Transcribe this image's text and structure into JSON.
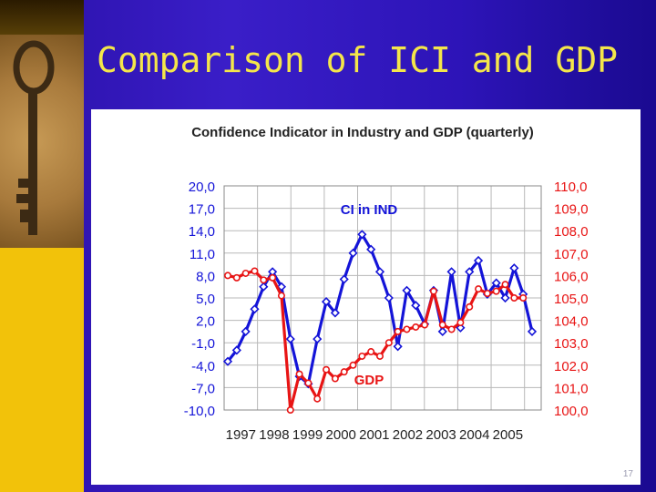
{
  "slide": {
    "title": "Comparison of ICI and GDP",
    "page_number": "17"
  },
  "colors": {
    "ici": "#1414d8",
    "gdp": "#e81414",
    "grid": "#b8b8b8",
    "title_text": "#f4e64a"
  },
  "chart_data": {
    "type": "line",
    "title": "Confidence Indicator in Industry and GDP (quarterly)",
    "x_tick_labels": [
      "1997",
      "1998",
      "1999",
      "2000",
      "2001",
      "2002",
      "2003",
      "2004",
      "2005"
    ],
    "left_axis": {
      "ylim": [
        -10,
        20
      ],
      "tick_labels": [
        "20,0",
        "17,0",
        "14,0",
        "11,0",
        "8,0",
        "5,0",
        "2,0",
        "-1,0",
        "-4,0",
        "-7,0",
        "-10,0"
      ]
    },
    "right_axis": {
      "ylim": [
        100,
        110
      ],
      "tick_labels": [
        "110,0",
        "109,0",
        "108,0",
        "107,0",
        "106,0",
        "105,0",
        "104,0",
        "103,0",
        "102,0",
        "101,0",
        "100,0"
      ]
    },
    "series": [
      {
        "name": "CI in IND",
        "axis": "left",
        "values": [
          -3.5,
          -2,
          0.5,
          3.5,
          6.5,
          8.5,
          6.5,
          -0.5,
          -5.5,
          -6.5,
          -0.5,
          4.5,
          3,
          7.5,
          11,
          13.5,
          11.5,
          8.5,
          5,
          -1.5,
          6,
          4,
          1.5,
          6,
          0.5,
          8.5,
          1,
          8.5,
          10,
          5.5,
          7,
          5,
          9,
          5.5,
          0.5
        ]
      },
      {
        "name": "GDP",
        "axis": "right",
        "values": [
          106.0,
          105.9,
          106.1,
          106.2,
          105.8,
          105.9,
          105.1,
          100.0,
          101.6,
          101.2,
          100.5,
          101.8,
          101.4,
          101.7,
          102.0,
          102.4,
          102.6,
          102.4,
          103.0,
          103.5,
          103.6,
          103.7,
          103.8,
          105.3,
          103.8,
          103.6,
          103.9,
          104.6,
          105.4,
          105.2,
          105.3,
          105.6,
          105.0,
          105.0,
          null
        ]
      }
    ],
    "annotations": [
      "CI in IND",
      "GDP"
    ],
    "grid": true
  }
}
